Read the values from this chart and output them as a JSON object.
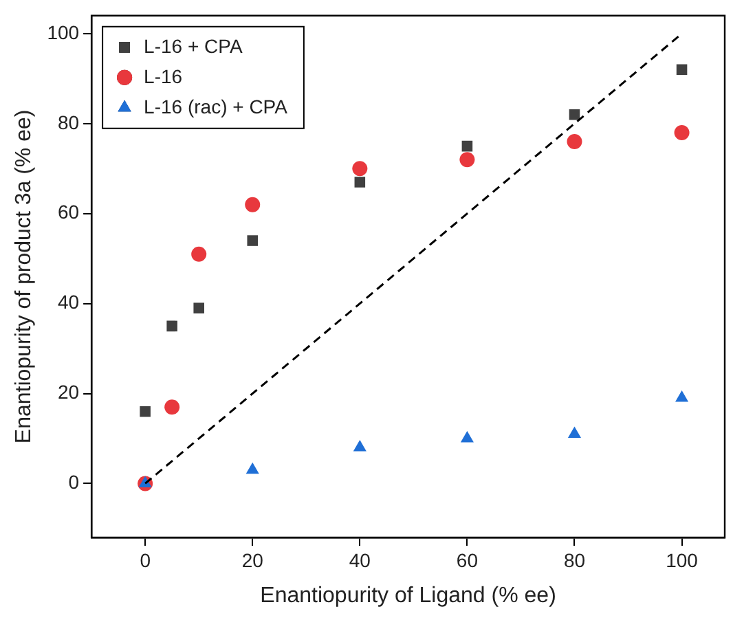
{
  "chart_data": {
    "type": "scatter",
    "xlabel": "Enantiopurity of Ligand (% ee)",
    "ylabel": "Enantiopurity of product 3a (% ee)",
    "xlim": [
      -10,
      108
    ],
    "xticks": [
      0,
      20,
      40,
      60,
      80,
      100
    ],
    "ylim": [
      -12,
      104
    ],
    "yticks": [
      0,
      20,
      40,
      60,
      80,
      100
    ],
    "grid": false,
    "legend": "top left",
    "series": [
      {
        "name": "L-16 + CPA",
        "color": "#404040",
        "marker": "square",
        "x": [
          0,
          5,
          10,
          20,
          40,
          60,
          80,
          100
        ],
        "values": [
          16,
          35,
          39,
          54,
          67,
          75,
          82,
          92
        ]
      },
      {
        "name": "L-16",
        "color": "#e8383d",
        "marker": "circle",
        "x": [
          0,
          5,
          10,
          20,
          40,
          60,
          80,
          100
        ],
        "values": [
          0,
          17,
          51,
          62,
          70,
          72,
          76,
          78
        ]
      },
      {
        "name": "L-16 (rac) + CPA",
        "color": "#1f6fd6",
        "marker": "triangle",
        "x": [
          0,
          20,
          40,
          60,
          80,
          100
        ],
        "values": [
          0,
          3,
          8,
          10,
          11,
          19
        ]
      },
      {
        "type": "line",
        "color": "#000000",
        "marker": "none",
        "line_style": "dashed",
        "x": [
          0,
          100
        ],
        "values": [
          0,
          100
        ]
      }
    ]
  }
}
